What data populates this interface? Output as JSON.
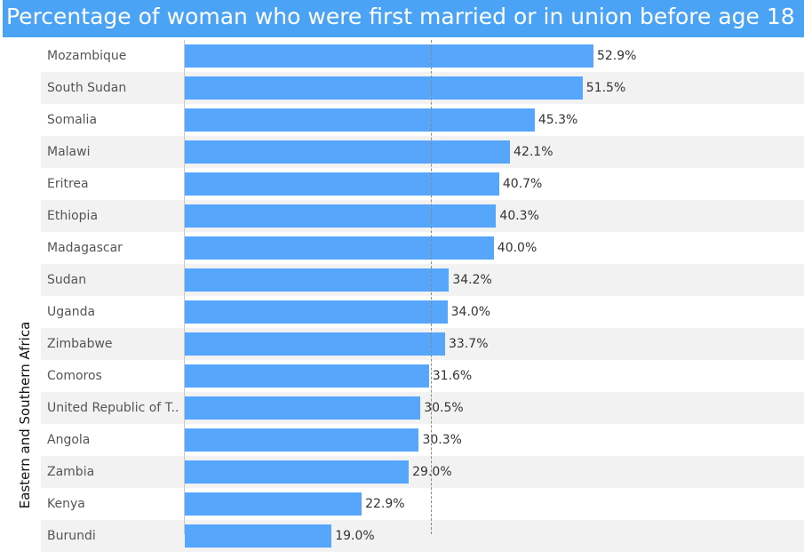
{
  "title": "Percentage of woman who were first married or in union before age 18",
  "group": "Eastern and Southern Africa",
  "chart_data": {
    "type": "bar",
    "orientation": "horizontal",
    "title": "Percentage of woman who were first married or in union before age 18",
    "row_group": "Eastern and Southern Africa",
    "categories": [
      "Mozambique",
      "South Sudan",
      "Somalia",
      "Malawi",
      "Eritrea",
      "Ethiopia",
      "Madagascar",
      "Sudan",
      "Uganda",
      "Zimbabwe",
      "Comoros",
      "United Republic of T..",
      "Angola",
      "Zambia",
      "Kenya",
      "Burundi"
    ],
    "values": [
      52.9,
      51.5,
      45.3,
      42.1,
      40.7,
      40.3,
      40.0,
      34.2,
      34.0,
      33.7,
      31.6,
      30.5,
      30.3,
      29.0,
      22.9,
      19.0
    ],
    "value_labels": [
      "52.9%",
      "51.5%",
      "45.3%",
      "42.1%",
      "40.7%",
      "40.3%",
      "40.0%",
      "34.2%",
      "34.0%",
      "33.7%",
      "31.6%",
      "30.5%",
      "30.3%",
      "29.0%",
      "22.9%",
      "19.0%"
    ],
    "xlim": [
      0,
      100
    ],
    "reference_line": 31.8,
    "bar_color": "#56a7fc",
    "grid": false
  }
}
